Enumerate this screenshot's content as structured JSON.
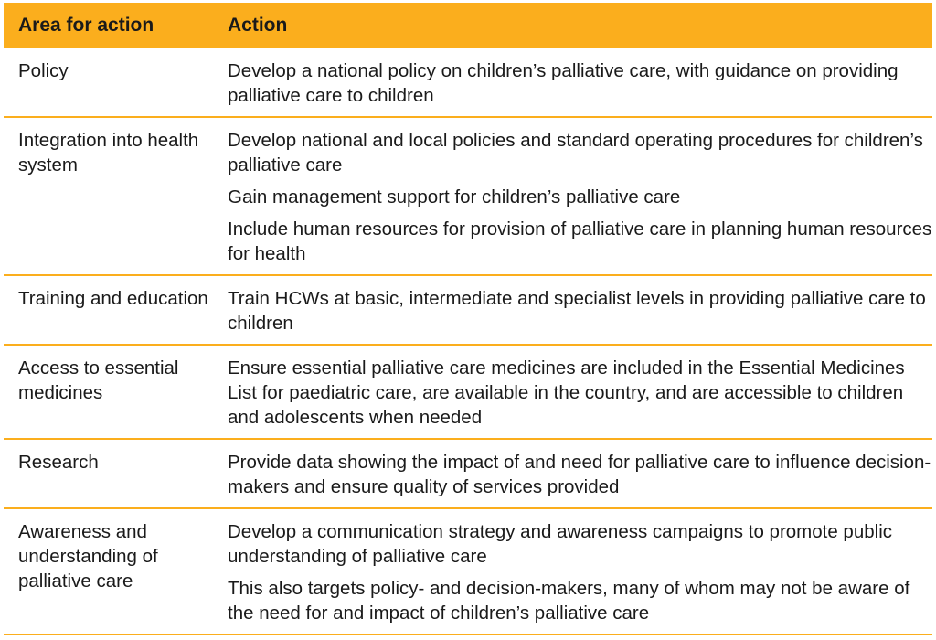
{
  "header": {
    "col1": "Area for action",
    "col2": "Action"
  },
  "rows": [
    {
      "area": "Policy",
      "actions": [
        "Develop a national policy on children’s palliative care, with guidance on providing palliative care to children"
      ]
    },
    {
      "area": "Integration into health system",
      "actions": [
        "Develop national and local policies and standard operating procedures for children’s palliative care",
        "Gain management support for children’s palliative care",
        "Include human resources for provision of palliative care in planning human resources for health"
      ]
    },
    {
      "area": "Training and education",
      "actions": [
        "Train HCWs at basic, intermediate and specialist levels in providing palliative care to children"
      ]
    },
    {
      "area": "Access to essential medicines",
      "actions": [
        "Ensure essential palliative care medicines are included in the Essential Medicines List for paediatric care, are available in the country, and are accessible to children and adolescents when needed"
      ]
    },
    {
      "area": "Research",
      "actions": [
        "Provide data showing the impact of and need for palliative care to influence decision-makers and ensure quality of services provided"
      ]
    },
    {
      "area": "Awareness and understanding of palliative care",
      "actions": [
        "Develop a communication strategy and awareness campaigns to promote public understanding of palliative care",
        "This also targets policy- and decision-makers, many of whom may not be aware of the need for and impact of children’s palliative care"
      ]
    }
  ],
  "colors": {
    "header": "#FBAE1D",
    "rule": "#FBAE1D"
  }
}
